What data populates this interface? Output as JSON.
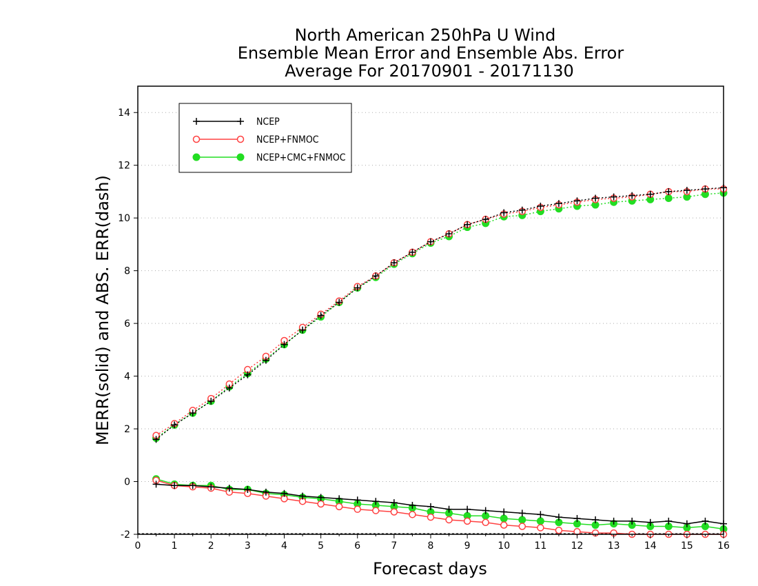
{
  "chart_data": {
    "type": "line",
    "title": [
      "North American 250hPa U Wind",
      "Ensemble Mean Error and Ensemble Abs. Error",
      "Average For 20170901 - 20171130"
    ],
    "xlabel": "Forecast days",
    "ylabel": "MERR(solid) and ABS. ERR(dash)",
    "xlim": [
      0,
      16
    ],
    "ylim": [
      -2,
      15
    ],
    "xticks": [
      0,
      1,
      2,
      3,
      4,
      5,
      6,
      7,
      8,
      9,
      10,
      11,
      12,
      13,
      14,
      15,
      16
    ],
    "yticks": [
      -2,
      0,
      2,
      4,
      6,
      8,
      10,
      12,
      14
    ],
    "x": [
      0.5,
      1,
      1.5,
      2,
      2.5,
      3,
      3.5,
      4,
      4.5,
      5,
      5.5,
      6,
      6.5,
      7,
      7.5,
      8,
      8.5,
      9,
      9.5,
      10,
      10.5,
      11,
      11.5,
      12,
      12.5,
      13,
      13.5,
      14,
      14.5,
      15,
      15.5,
      16
    ],
    "grid": true,
    "legend_position": "top-left",
    "series": [
      {
        "name": "NCEP",
        "color": "#000000",
        "marker": "plus",
        "merr": [
          -0.1,
          -0.15,
          -0.15,
          -0.2,
          -0.25,
          -0.3,
          -0.4,
          -0.45,
          -0.55,
          -0.6,
          -0.65,
          -0.7,
          -0.75,
          -0.8,
          -0.9,
          -0.95,
          -1.05,
          -1.05,
          -1.1,
          -1.15,
          -1.2,
          -1.25,
          -1.35,
          -1.4,
          -1.45,
          -1.5,
          -1.5,
          -1.55,
          -1.5,
          -1.6,
          -1.5,
          -1.6
        ],
        "abserr": [
          1.6,
          2.15,
          2.6,
          3.05,
          3.55,
          4.05,
          4.6,
          5.2,
          5.75,
          6.3,
          6.8,
          7.35,
          7.8,
          8.3,
          8.7,
          9.1,
          9.4,
          9.75,
          9.95,
          10.2,
          10.3,
          10.45,
          10.55,
          10.65,
          10.75,
          10.8,
          10.85,
          10.9,
          11.0,
          11.05,
          11.1,
          11.15
        ]
      },
      {
        "name": "NCEP+FNMOC",
        "color": "#ff4040",
        "marker": "open-circle",
        "merr": [
          0.05,
          -0.15,
          -0.2,
          -0.25,
          -0.4,
          -0.45,
          -0.55,
          -0.65,
          -0.75,
          -0.85,
          -0.95,
          -1.05,
          -1.1,
          -1.15,
          -1.25,
          -1.35,
          -1.45,
          -1.5,
          -1.55,
          -1.65,
          -1.7,
          -1.75,
          -1.85,
          -1.9,
          -1.95,
          -1.95,
          -2.0,
          -2.0,
          -2.0,
          -2.0,
          -2.0,
          -2.0
        ],
        "abserr": [
          1.75,
          2.2,
          2.7,
          3.15,
          3.7,
          4.25,
          4.75,
          5.35,
          5.85,
          6.35,
          6.85,
          7.4,
          7.8,
          8.3,
          8.7,
          9.1,
          9.4,
          9.75,
          9.95,
          10.15,
          10.25,
          10.4,
          10.5,
          10.6,
          10.7,
          10.75,
          10.8,
          10.9,
          11.0,
          11.0,
          11.1,
          11.1
        ]
      },
      {
        "name": "NCEP+CMC+FNMOC",
        "color": "#22dd22",
        "marker": "filled-circle",
        "merr": [
          0.1,
          -0.1,
          -0.15,
          -0.15,
          -0.3,
          -0.3,
          -0.45,
          -0.5,
          -0.6,
          -0.65,
          -0.75,
          -0.85,
          -0.9,
          -0.95,
          -1.0,
          -1.15,
          -1.2,
          -1.3,
          -1.3,
          -1.4,
          -1.45,
          -1.5,
          -1.55,
          -1.6,
          -1.65,
          -1.6,
          -1.65,
          -1.7,
          -1.7,
          -1.75,
          -1.7,
          -1.8
        ],
        "abserr": [
          1.65,
          2.15,
          2.6,
          3.05,
          3.6,
          4.1,
          4.65,
          5.2,
          5.75,
          6.25,
          6.8,
          7.35,
          7.75,
          8.25,
          8.65,
          9.05,
          9.3,
          9.65,
          9.8,
          10.05,
          10.1,
          10.25,
          10.35,
          10.45,
          10.5,
          10.6,
          10.65,
          10.7,
          10.75,
          10.8,
          10.9,
          10.95
        ]
      }
    ]
  }
}
